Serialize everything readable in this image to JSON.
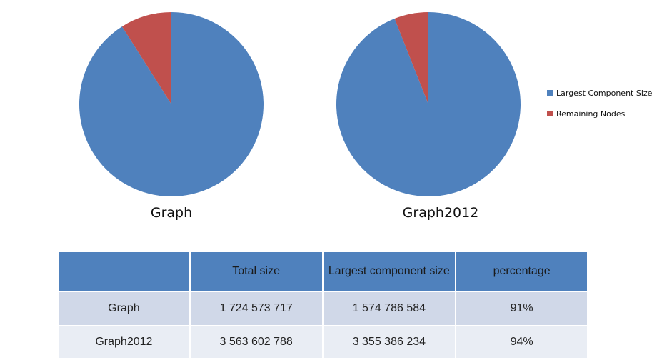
{
  "chart_data": [
    {
      "type": "pie",
      "title": "Graph",
      "labels": [
        "Largest Component Size",
        "Remaining Nodes"
      ],
      "values": [
        91,
        9
      ],
      "colors": [
        "#4f81bd",
        "#c0504d"
      ]
    },
    {
      "type": "pie",
      "title": "Graph2012",
      "labels": [
        "Largest Component Size",
        "Remaining Nodes"
      ],
      "values": [
        94,
        6
      ],
      "colors": [
        "#4f81bd",
        "#c0504d"
      ]
    }
  ],
  "legend": {
    "items": [
      {
        "label": "Largest Component Size",
        "color": "#4f81bd"
      },
      {
        "label": "Remaining Nodes",
        "color": "#c0504d"
      }
    ],
    "placement": "right"
  },
  "table": {
    "headers": [
      "",
      "Total size",
      "Largest component size",
      "percentage"
    ],
    "rows": [
      [
        "Graph",
        "1 724 573 717",
        "1 574 786 584",
        "91%"
      ],
      [
        "Graph2012",
        "3 563 602 788",
        "3 355 386 234",
        "94%"
      ]
    ],
    "header_color": "#4f81bd",
    "row_colors": [
      "#d0d8e8",
      "#e9edf4"
    ]
  }
}
